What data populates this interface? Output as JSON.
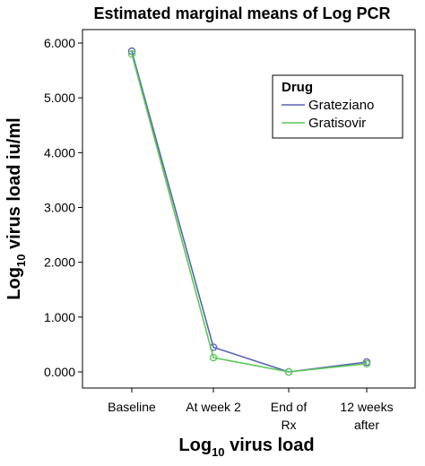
{
  "chart_data": {
    "type": "line",
    "title": "Estimated marginal means of Log PCR",
    "xlabel": {
      "prefix": "Log",
      "subscript": "10",
      "suffix": " virus load"
    },
    "ylabel": {
      "prefix": "Log",
      "subscript": "10",
      "suffix": " virus load  iu/ml"
    },
    "categories": [
      [
        "Baseline"
      ],
      [
        "At week 2"
      ],
      [
        "End of",
        "Rx"
      ],
      [
        "12 weeks",
        "after"
      ]
    ],
    "ylim": [
      0,
      6
    ],
    "yticks": [
      0,
      1,
      2,
      3,
      4,
      5,
      6
    ],
    "ytick_labels": [
      "0.000",
      "1.000",
      "2.000",
      "3.000",
      "4.000",
      "5.000",
      "6.000"
    ],
    "grid": false,
    "legend": {
      "title": "Drug",
      "position": "top-right"
    },
    "series": [
      {
        "name": "Grateziano",
        "color": "#5b63b5",
        "values": [
          5.85,
          0.45,
          0.0,
          0.18
        ]
      },
      {
        "name": "Gratisovir",
        "color": "#5cc85a",
        "values": [
          5.8,
          0.26,
          0.0,
          0.15
        ]
      }
    ]
  }
}
